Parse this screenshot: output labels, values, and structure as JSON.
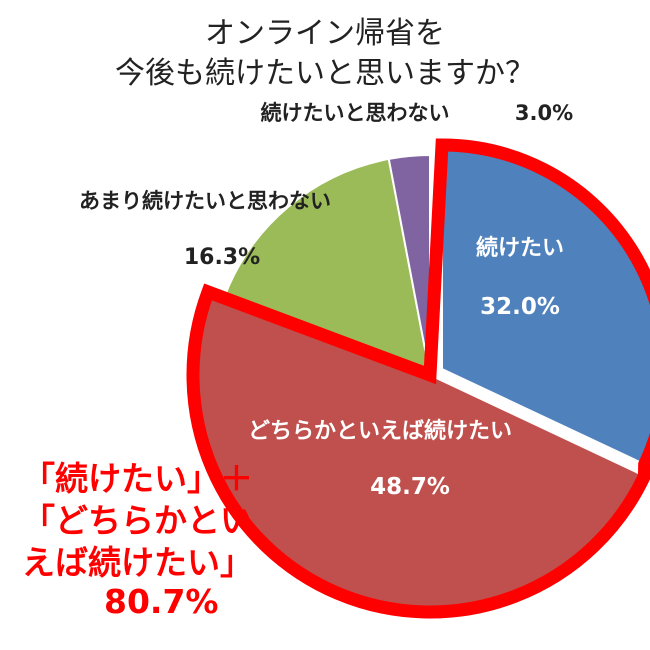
{
  "title_lines": [
    "オンライン帰省を",
    "今後も続けたいと思いますか？"
  ],
  "chart_data": {
    "type": "pie",
    "title": "オンライン帰省を今後も続けたいと思いますか？",
    "slices": [
      {
        "label": "続けたい",
        "value": 32.0,
        "display": "32.0%",
        "color": "#4f81bd"
      },
      {
        "label": "どちらかといえば続けたい",
        "value": 48.7,
        "display": "48.7%",
        "color": "#c0504d"
      },
      {
        "label": "あまり続けたいと思わない",
        "value": 16.3,
        "display": "16.3%",
        "color": "#9bbb59"
      },
      {
        "label": "続けたいと思わない",
        "value": 3.0,
        "display": "3.0%",
        "color": "#8064a2"
      }
    ],
    "highlight_color": "#ff0000"
  },
  "callout": {
    "lines": [
      "「続けたい」＋",
      "「どちらかとい",
      "えば続けたい」"
    ],
    "total": "80.7%"
  }
}
